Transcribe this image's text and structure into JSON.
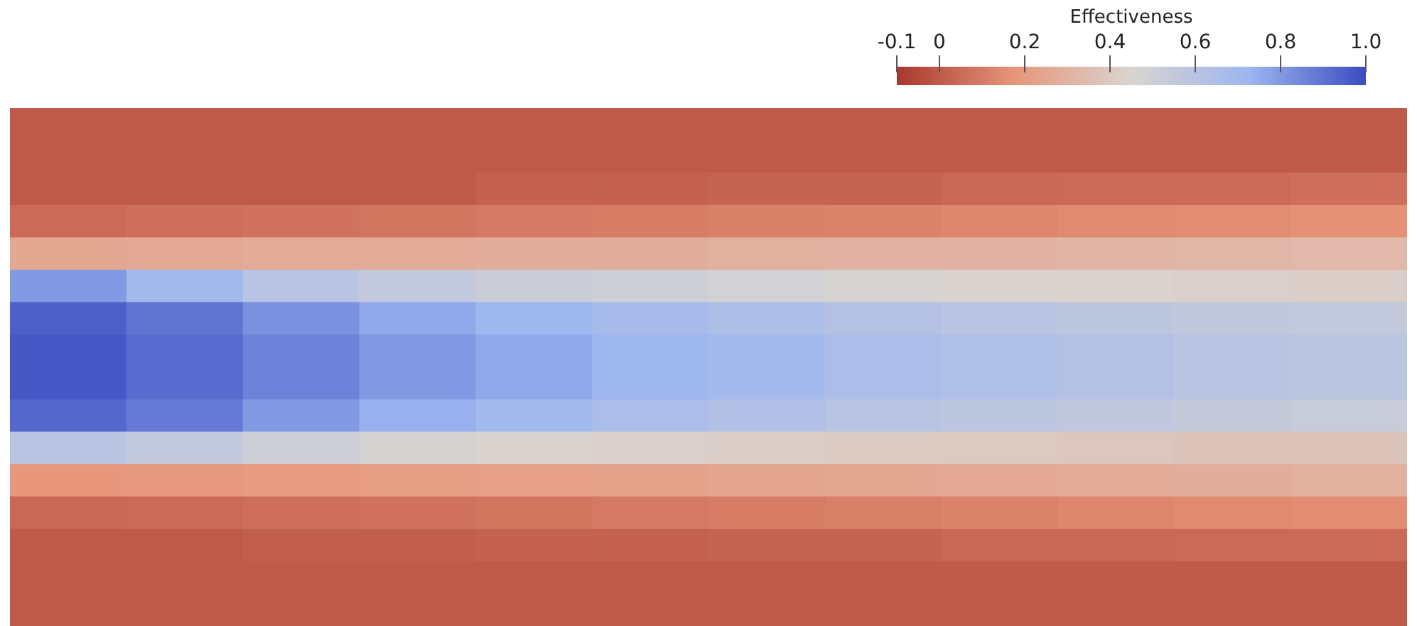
{
  "chart_data": {
    "type": "heatmap",
    "clabel": "Effectiveness",
    "clim": [
      -0.1,
      1
    ],
    "cticks": [
      -0.1,
      0,
      0.2,
      0.4,
      0.6,
      0.8,
      {
        "value": 1,
        "label": "1.0"
      }
    ],
    "tick_labels": false,
    "categories": [
      null,
      null,
      null,
      null,
      null,
      null,
      null,
      null,
      null,
      null,
      null,
      null
    ],
    "y_categories": [
      null,
      null,
      null,
      null,
      null,
      null,
      null,
      null,
      null,
      null,
      null,
      null,
      null,
      null,
      null,
      null
    ],
    "cells": [
      [
        0,
        0,
        0,
        0,
        0,
        0,
        0,
        0,
        0,
        0,
        0,
        0
      ],
      [
        0,
        0,
        0,
        0,
        0,
        0,
        0,
        0,
        0,
        0,
        0,
        0
      ],
      [
        0,
        0,
        0,
        0,
        0.02,
        0.02,
        0.03,
        0.03,
        0.04,
        0.05,
        0.05,
        0.06
      ],
      [
        0.05,
        0.06,
        0.07,
        0.08,
        0.09,
        0.1,
        0.11,
        0.12,
        0.13,
        0.14,
        0.15,
        0.16
      ],
      [
        0.25,
        0.26,
        0.27,
        0.27,
        0.28,
        0.28,
        0.29,
        0.3,
        0.3,
        0.31,
        0.32,
        0.33
      ],
      [
        0.8,
        0.7,
        0.6,
        0.55,
        0.52,
        0.5,
        0.48,
        0.46,
        0.45,
        0.44,
        0.43,
        0.42
      ],
      [
        0.95,
        0.9,
        0.82,
        0.76,
        0.72,
        0.68,
        0.65,
        0.62,
        0.6,
        0.58,
        0.56,
        0.55
      ],
      [
        0.97,
        0.92,
        0.86,
        0.8,
        0.76,
        0.72,
        0.69,
        0.66,
        0.64,
        0.62,
        0.6,
        0.59
      ],
      [
        0.97,
        0.92,
        0.86,
        0.8,
        0.76,
        0.72,
        0.69,
        0.66,
        0.64,
        0.62,
        0.6,
        0.59
      ],
      [
        0.93,
        0.88,
        0.8,
        0.74,
        0.7,
        0.66,
        0.63,
        0.6,
        0.58,
        0.56,
        0.54,
        0.53
      ],
      [
        0.6,
        0.55,
        0.5,
        0.47,
        0.45,
        0.43,
        0.42,
        0.41,
        0.4,
        0.39,
        0.38,
        0.38
      ],
      [
        0.18,
        0.19,
        0.2,
        0.21,
        0.22,
        0.23,
        0.24,
        0.25,
        0.26,
        0.27,
        0.28,
        0.29
      ],
      [
        0.04,
        0.05,
        0.06,
        0.07,
        0.08,
        0.09,
        0.1,
        0.11,
        0.12,
        0.13,
        0.14,
        0.15
      ],
      [
        0,
        0,
        0.01,
        0.01,
        0.02,
        0.02,
        0.03,
        0.03,
        0.04,
        0.04,
        0.05,
        0.05
      ],
      [
        0,
        0,
        0,
        0,
        0,
        0,
        0,
        0,
        0,
        0,
        0,
        0
      ],
      [
        0,
        0,
        0,
        0,
        0,
        0,
        0,
        0,
        0,
        0,
        0,
        0
      ]
    ]
  }
}
